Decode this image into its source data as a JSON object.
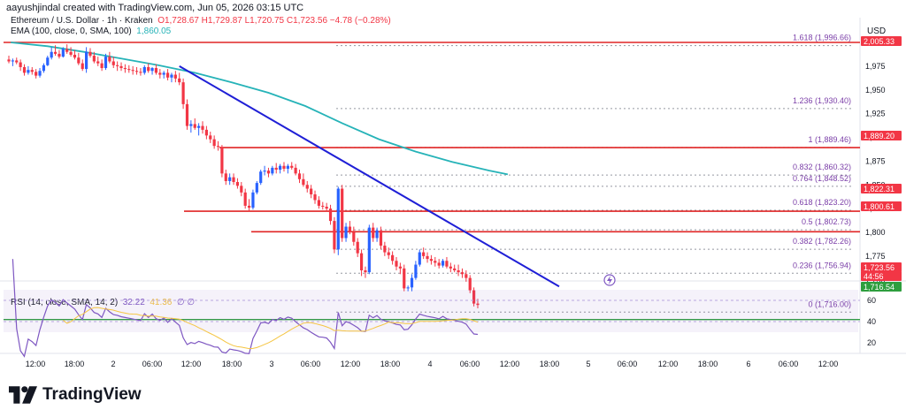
{
  "header": {
    "byline": "aayushjindal created with TradingView.com, Jun 05, 2026 03:15 UTC"
  },
  "legend": {
    "symbol": "Ethereum / U.S. Dollar · 1h · Kraken",
    "ohlc": "O1,728.67  H1,729.87  L1,720.75  C1,723.56  −4.78 (−0.28%)",
    "ema": "EMA (100, close, 0, SMA, 100)",
    "ema_value": "1,860.05"
  },
  "rsi_legend": {
    "label": "RSI (14, close, SMA, 14, 2)",
    "rsi": "32.22",
    "ma": "41.36",
    "extra": "∅  ∅"
  },
  "brand": "TradingView",
  "colors": {
    "up": "#2962ff",
    "down": "#f23645",
    "ema": "#26b3b8",
    "trend": "#1f1fd6",
    "hline": "#e02525",
    "fib": "#7b3fa8",
    "support": "#2e9e3e",
    "rsi": "#7e57c2",
    "rsi_ma": "#f5c542"
  },
  "chart_data": {
    "type": "candlestick",
    "title": "Ethereum / U.S. Dollar · 1h · Kraken",
    "currency": "USD",
    "price_ticks": [
      1975,
      1950,
      1925,
      1900,
      1875,
      1850,
      1825,
      1800,
      1775,
      1750
    ],
    "time_ticks": [
      "12:00",
      "18:00",
      "2",
      "06:00",
      "12:00",
      "18:00",
      "3",
      "06:00",
      "12:00",
      "18:00",
      "4",
      "06:00",
      "12:00",
      "18:00",
      "5",
      "06:00",
      "12:00",
      "18:00",
      "6",
      "06:00",
      "12:00"
    ],
    "price_badges": [
      {
        "label": "2,005.33",
        "color": "#f23645"
      },
      {
        "label": "1,889.20",
        "color": "#f23645"
      },
      {
        "label": "1,822.31",
        "color": "#f23645"
      },
      {
        "label": "1,800.61",
        "color": "#f23645"
      },
      {
        "label": "1,723.56",
        "color": "#f23645"
      },
      {
        "label": "44:56",
        "color": "#f23645"
      },
      {
        "label": "1,716.54",
        "color": "#2e9e3e"
      }
    ],
    "horizontal_lines": [
      {
        "price": 2000,
        "start": "12:00 Jun 1"
      },
      {
        "price": 1889.2,
        "start": "12:00 Jun 2"
      },
      {
        "price": 1822.31,
        "start": "12:00 Jun 2"
      },
      {
        "price": 1800.61,
        "start": "18:00 Jun 2"
      }
    ],
    "support_line": {
      "price": 1716.54
    },
    "fib_levels": [
      {
        "ratio": "1.618",
        "price": 1996.66,
        "label": "1.618 (1,996.66)"
      },
      {
        "ratio": "1.236",
        "price": 1930.4,
        "label": "1.236 (1,930.40)"
      },
      {
        "ratio": "1",
        "price": 1889.46,
        "label": "1 (1,889.46)"
      },
      {
        "ratio": "0.832",
        "price": 1860.32,
        "label": "0.832 (1,860.32)"
      },
      {
        "ratio": "0.764",
        "price": 1848.52,
        "label": "0.764 (1,848.52)"
      },
      {
        "ratio": "0.618",
        "price": 1823.2,
        "label": "0.618 (1,823.20)"
      },
      {
        "ratio": "0.5",
        "price": 1802.73,
        "label": "0.5 (1,802.73)"
      },
      {
        "ratio": "0.382",
        "price": 1782.26,
        "label": "0.382 (1,782.26)"
      },
      {
        "ratio": "0.236",
        "price": 1756.94,
        "label": "0.236 (1,756.94)"
      },
      {
        "ratio": "0",
        "price": 1716.0,
        "label": "0 (1,716.00)"
      }
    ],
    "trend_line": {
      "from": {
        "bar": 44,
        "price": 1975
      },
      "to": {
        "bar": 142,
        "price": 1743
      }
    },
    "ema": [
      [
        0,
        2000
      ],
      [
        10,
        1996
      ],
      [
        20,
        1990
      ],
      [
        30,
        1983
      ],
      [
        40,
        1976
      ],
      [
        50,
        1968
      ],
      [
        60,
        1958
      ],
      [
        70,
        1947
      ],
      [
        80,
        1933
      ],
      [
        90,
        1915
      ],
      [
        100,
        1898
      ],
      [
        110,
        1885
      ],
      [
        120,
        1874
      ],
      [
        130,
        1865
      ],
      [
        135,
        1861
      ]
    ],
    "candles": [
      [
        1982,
        1986,
        1978,
        1980
      ],
      [
        1980,
        1983,
        1975,
        1981
      ],
      [
        1981,
        1984,
        1977,
        1979
      ],
      [
        1979,
        1982,
        1970,
        1974
      ],
      [
        1974,
        1977,
        1965,
        1968
      ],
      [
        1968,
        1975,
        1966,
        1971
      ],
      [
        1971,
        1974,
        1966,
        1969
      ],
      [
        1969,
        1972,
        1962,
        1965
      ],
      [
        1965,
        1973,
        1963,
        1970
      ],
      [
        1970,
        1978,
        1968,
        1976
      ],
      [
        1976,
        1986,
        1975,
        1984
      ],
      [
        1984,
        1995,
        1982,
        1990
      ],
      [
        1990,
        1997,
        1986,
        1988
      ],
      [
        1988,
        1992,
        1983,
        1985
      ],
      [
        1985,
        1995,
        1984,
        1993
      ],
      [
        1993,
        1998,
        1988,
        1990
      ],
      [
        1990,
        1995,
        1985,
        1987
      ],
      [
        1987,
        1992,
        1982,
        1984
      ],
      [
        1984,
        1989,
        1976,
        1978
      ],
      [
        1978,
        1982,
        1970,
        1972
      ],
      [
        1972,
        1995,
        1968,
        1990
      ],
      [
        1990,
        1994,
        1984,
        1986
      ],
      [
        1986,
        1990,
        1978,
        1980
      ],
      [
        1980,
        1985,
        1975,
        1978
      ],
      [
        1978,
        1982,
        1970,
        1973
      ],
      [
        1973,
        1988,
        1971,
        1985
      ],
      [
        1985,
        1990,
        1978,
        1980
      ],
      [
        1980,
        1985,
        1973,
        1976
      ],
      [
        1976,
        1980,
        1970,
        1975
      ],
      [
        1975,
        1979,
        1970,
        1973
      ],
      [
        1973,
        1977,
        1968,
        1972
      ],
      [
        1972,
        1976,
        1968,
        1971
      ],
      [
        1971,
        1975,
        1966,
        1970
      ],
      [
        1970,
        1974,
        1966,
        1969
      ],
      [
        1969,
        1973,
        1965,
        1968
      ],
      [
        1968,
        1976,
        1966,
        1974
      ],
      [
        1974,
        1978,
        1968,
        1970
      ],
      [
        1970,
        1974,
        1966,
        1973
      ],
      [
        1973,
        1977,
        1966,
        1968
      ],
      [
        1968,
        1972,
        1962,
        1966
      ],
      [
        1966,
        1970,
        1962,
        1968
      ],
      [
        1968,
        1972,
        1960,
        1963
      ],
      [
        1963,
        1968,
        1958,
        1966
      ],
      [
        1966,
        1970,
        1958,
        1962
      ],
      [
        1962,
        1968,
        1955,
        1958
      ],
      [
        1958,
        1962,
        1930,
        1935
      ],
      [
        1935,
        1940,
        1908,
        1912
      ],
      [
        1912,
        1918,
        1905,
        1914
      ],
      [
        1914,
        1920,
        1908,
        1910
      ],
      [
        1910,
        1915,
        1902,
        1912
      ],
      [
        1912,
        1917,
        1904,
        1908
      ],
      [
        1908,
        1912,
        1898,
        1902
      ],
      [
        1902,
        1906,
        1894,
        1898
      ],
      [
        1898,
        1902,
        1888,
        1891
      ],
      [
        1891,
        1896,
        1886,
        1890
      ],
      [
        1890,
        1892,
        1858,
        1862
      ],
      [
        1862,
        1866,
        1850,
        1854
      ],
      [
        1854,
        1862,
        1850,
        1858
      ],
      [
        1858,
        1862,
        1850,
        1853
      ],
      [
        1853,
        1857,
        1846,
        1849
      ],
      [
        1849,
        1853,
        1838,
        1842
      ],
      [
        1842,
        1846,
        1825,
        1828
      ],
      [
        1828,
        1835,
        1822,
        1826
      ],
      [
        1826,
        1845,
        1824,
        1842
      ],
      [
        1842,
        1854,
        1840,
        1852
      ],
      [
        1852,
        1866,
        1850,
        1864
      ],
      [
        1864,
        1870,
        1860,
        1865
      ],
      [
        1865,
        1868,
        1858,
        1862
      ],
      [
        1862,
        1870,
        1860,
        1868
      ],
      [
        1868,
        1873,
        1862,
        1866
      ],
      [
        1866,
        1872,
        1862,
        1870
      ],
      [
        1870,
        1874,
        1864,
        1867
      ],
      [
        1867,
        1872,
        1862,
        1870
      ],
      [
        1870,
        1874,
        1866,
        1868
      ],
      [
        1868,
        1872,
        1860,
        1862
      ],
      [
        1862,
        1866,
        1852,
        1856
      ],
      [
        1856,
        1862,
        1848,
        1850
      ],
      [
        1850,
        1854,
        1842,
        1846
      ],
      [
        1846,
        1850,
        1836,
        1840
      ],
      [
        1840,
        1844,
        1830,
        1834
      ],
      [
        1834,
        1838,
        1825,
        1828
      ],
      [
        1828,
        1832,
        1824,
        1827
      ],
      [
        1827,
        1831,
        1822,
        1825
      ],
      [
        1825,
        1829,
        1808,
        1812
      ],
      [
        1812,
        1816,
        1778,
        1782
      ],
      [
        1782,
        1848,
        1776,
        1846
      ],
      [
        1846,
        1850,
        1790,
        1794
      ],
      [
        1794,
        1810,
        1790,
        1806
      ],
      [
        1806,
        1812,
        1798,
        1800
      ],
      [
        1800,
        1806,
        1786,
        1790
      ],
      [
        1790,
        1794,
        1774,
        1778
      ],
      [
        1778,
        1782,
        1754,
        1760
      ],
      [
        1760,
        1764,
        1752,
        1758
      ],
      [
        1758,
        1808,
        1756,
        1805
      ],
      [
        1805,
        1810,
        1790,
        1794
      ],
      [
        1794,
        1805,
        1790,
        1802
      ],
      [
        1802,
        1806,
        1782,
        1786
      ],
      [
        1786,
        1790,
        1775,
        1779
      ],
      [
        1779,
        1784,
        1772,
        1776
      ],
      [
        1776,
        1780,
        1766,
        1770
      ],
      [
        1770,
        1774,
        1760,
        1764
      ],
      [
        1764,
        1768,
        1756,
        1762
      ],
      [
        1762,
        1766,
        1738,
        1741
      ],
      [
        1741,
        1744,
        1738,
        1742
      ],
      [
        1742,
        1756,
        1738,
        1752
      ],
      [
        1752,
        1770,
        1750,
        1766
      ],
      [
        1766,
        1782,
        1764,
        1779
      ],
      [
        1779,
        1784,
        1772,
        1775
      ],
      [
        1775,
        1779,
        1768,
        1772
      ],
      [
        1772,
        1776,
        1766,
        1770
      ],
      [
        1770,
        1774,
        1764,
        1768
      ],
      [
        1768,
        1772,
        1762,
        1765
      ],
      [
        1765,
        1772,
        1763,
        1770
      ],
      [
        1770,
        1774,
        1762,
        1764
      ],
      [
        1764,
        1768,
        1758,
        1762
      ],
      [
        1762,
        1766,
        1758,
        1760
      ],
      [
        1760,
        1766,
        1754,
        1758
      ],
      [
        1758,
        1762,
        1752,
        1756
      ],
      [
        1756,
        1760,
        1748,
        1752
      ],
      [
        1752,
        1755,
        1736,
        1739
      ],
      [
        1739,
        1742,
        1722,
        1725
      ],
      [
        1725,
        1730,
        1720,
        1723.56
      ]
    ],
    "rsi": {
      "ticks": [
        60,
        40,
        20
      ],
      "band": [
        30,
        70
      ]
    }
  }
}
